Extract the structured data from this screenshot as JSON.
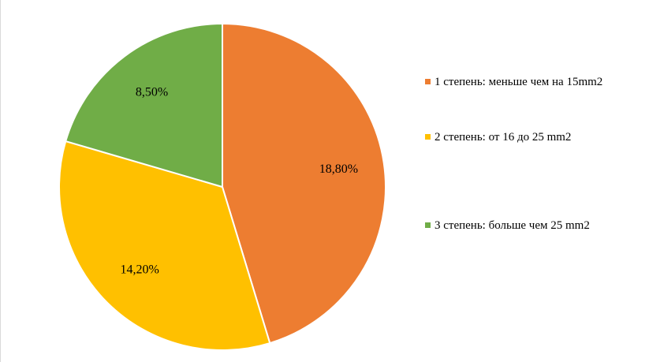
{
  "chart_data": {
    "type": "pie",
    "title": "",
    "slices": [
      {
        "name": "1 степень: меньше чем на 15mm2",
        "value": 18.8,
        "label": "18,80%",
        "color": "#ED7D31"
      },
      {
        "name": "2 степень: от 16 до 25 mm2",
        "value": 14.2,
        "label": "14,20%",
        "color": "#FFC000"
      },
      {
        "name": "3 степень: больше чем 25 mm2",
        "value": 8.5,
        "label": "8,50%",
        "color": "#70AD47"
      }
    ],
    "start_angle_deg": 0,
    "direction": "clockwise",
    "legend_position": "right"
  }
}
